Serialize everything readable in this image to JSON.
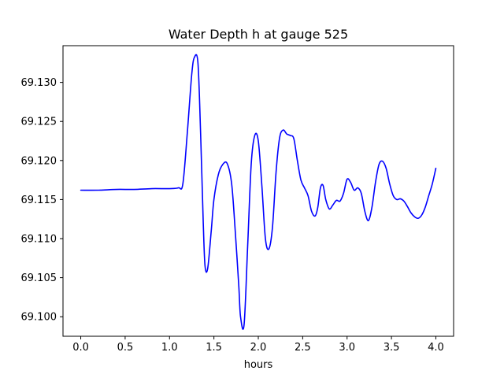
{
  "chart_data": {
    "type": "line",
    "title": "Water Depth h at gauge 525",
    "xlabel": "hours",
    "ylabel": "",
    "xlim": [
      -0.2,
      4.2
    ],
    "ylim": [
      69.0975,
      69.1347
    ],
    "grid": false,
    "line_color": "#0000ff",
    "x_ticks": [
      0.0,
      0.5,
      1.0,
      1.5,
      2.0,
      2.5,
      3.0,
      3.5,
      4.0
    ],
    "x_tick_labels": [
      "0.0",
      "0.5",
      "1.0",
      "1.5",
      "2.0",
      "2.5",
      "3.0",
      "3.5",
      "4.0"
    ],
    "y_ticks": [
      69.1,
      69.105,
      69.11,
      69.115,
      69.12,
      69.125,
      69.13
    ],
    "y_tick_labels": [
      "69.100",
      "69.105",
      "69.110",
      "69.115",
      "69.120",
      "69.125",
      "69.130"
    ],
    "series": [
      {
        "x": [
          0.0,
          0.2,
          0.4,
          0.6,
          0.8,
          1.0,
          1.1,
          1.15,
          1.2,
          1.25,
          1.28,
          1.32,
          1.35,
          1.38,
          1.4,
          1.43,
          1.47,
          1.5,
          1.55,
          1.6,
          1.65,
          1.7,
          1.74,
          1.78,
          1.8,
          1.84,
          1.88,
          1.92,
          1.96,
          2.0,
          2.04,
          2.08,
          2.12,
          2.16,
          2.2,
          2.24,
          2.28,
          2.32,
          2.36,
          2.4,
          2.44,
          2.48,
          2.52,
          2.56,
          2.6,
          2.64,
          2.67,
          2.7,
          2.73,
          2.76,
          2.8,
          2.84,
          2.88,
          2.92,
          2.96,
          3.0,
          3.04,
          3.08,
          3.12,
          3.16,
          3.2,
          3.24,
          3.28,
          3.32,
          3.36,
          3.4,
          3.44,
          3.48,
          3.52,
          3.56,
          3.6,
          3.64,
          3.68,
          3.72,
          3.76,
          3.8,
          3.84,
          3.88,
          3.92,
          3.96,
          4.0
        ],
        "y": [
          69.1162,
          69.1162,
          69.1163,
          69.1163,
          69.1164,
          69.1164,
          69.1165,
          69.117,
          69.1235,
          69.131,
          69.1332,
          69.1325,
          69.1235,
          69.112,
          69.1065,
          69.1062,
          69.111,
          69.115,
          69.1182,
          69.1195,
          69.1196,
          69.117,
          69.111,
          69.104,
          69.1,
          69.099,
          69.109,
          69.1195,
          69.1232,
          69.1225,
          69.1168,
          69.11,
          69.1087,
          69.1115,
          69.1185,
          69.1229,
          69.1239,
          69.1234,
          69.1232,
          69.1228,
          69.12,
          69.1175,
          69.1165,
          69.1155,
          69.1135,
          69.1129,
          69.114,
          69.1165,
          69.1168,
          69.115,
          69.1138,
          69.1143,
          69.1149,
          69.1148,
          69.1158,
          69.1176,
          69.1172,
          69.1162,
          69.1165,
          69.1158,
          69.1135,
          69.1123,
          69.114,
          69.1172,
          69.1195,
          69.1199,
          69.119,
          69.117,
          69.1155,
          69.115,
          69.1151,
          69.1148,
          69.1141,
          69.1133,
          69.1128,
          69.1126,
          69.113,
          69.114,
          69.1155,
          69.117,
          69.119
        ]
      }
    ]
  }
}
